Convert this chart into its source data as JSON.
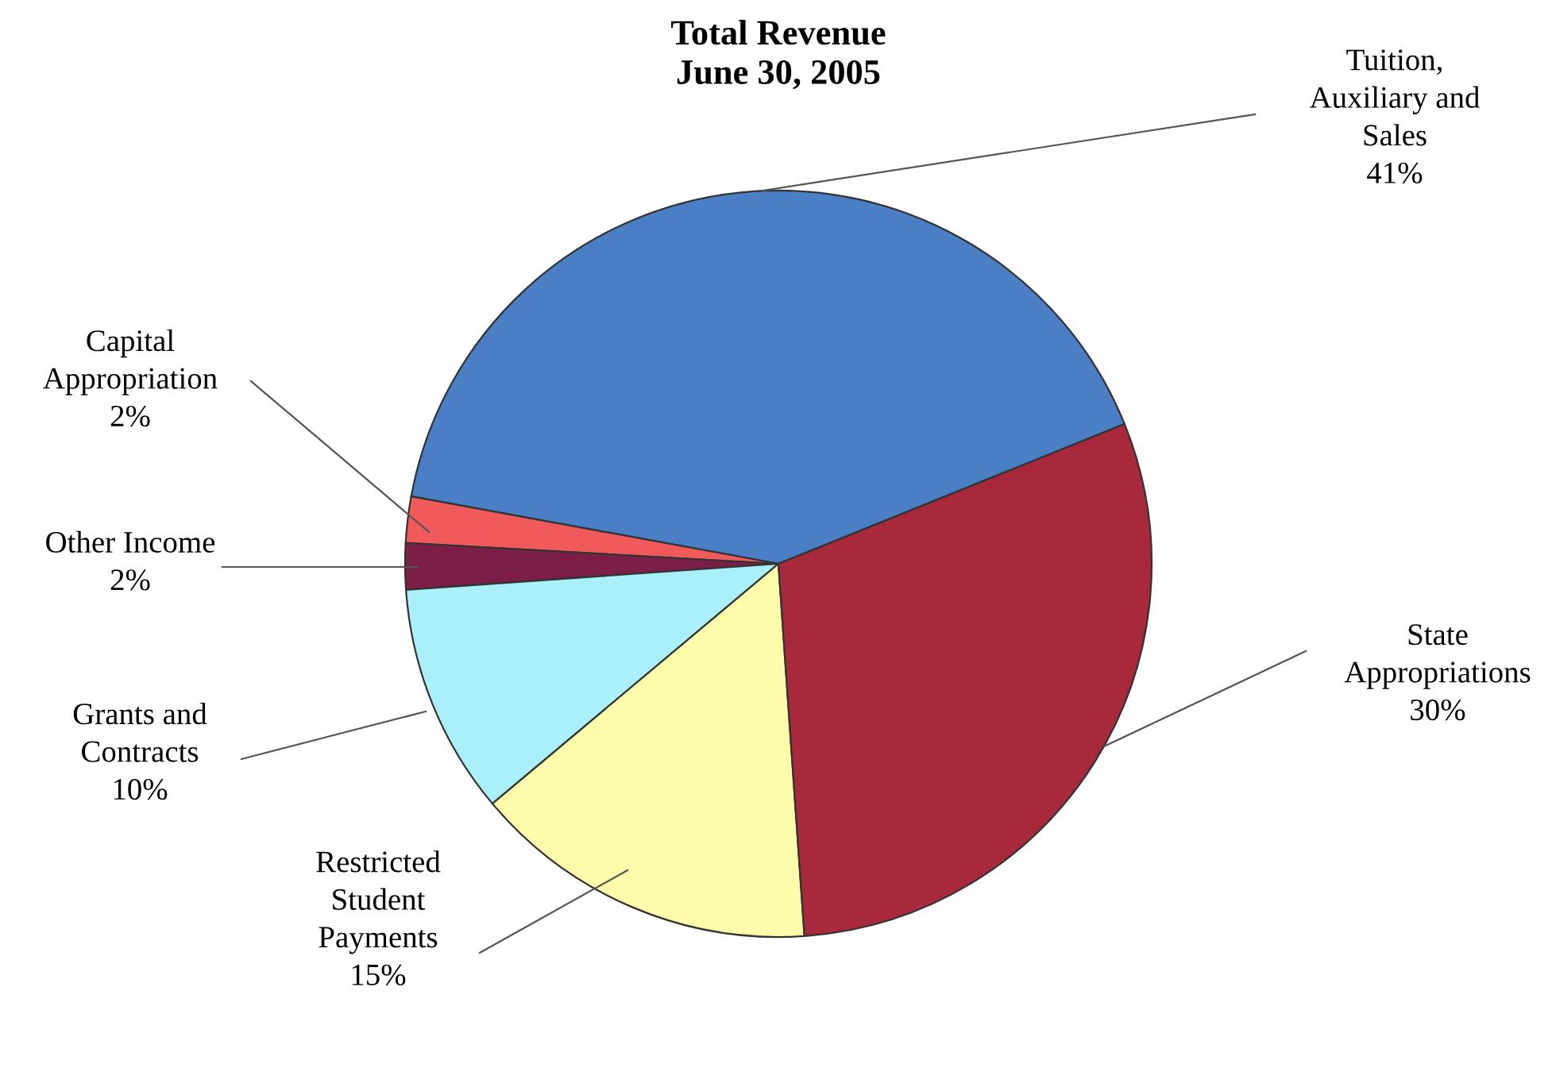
{
  "chart_data": {
    "type": "pie",
    "title": "Total Revenue\nJune 30, 2005",
    "categories": [
      "Tuition, Auxiliary and Sales",
      "Capital Appropriation",
      "Other Income",
      "Grants and Contracts",
      "Restricted Student Payments",
      "State Appropriations"
    ],
    "values": [
      41,
      2,
      2,
      10,
      15,
      30
    ],
    "value_labels": [
      "41%",
      "2%",
      "2%",
      "10%",
      "15%",
      "30%"
    ],
    "colors": [
      "#4a7fc6",
      "#f05a5a",
      "#7c1f48",
      "#aaf0fa",
      "#fefcaa",
      "#a8283c"
    ]
  }
}
